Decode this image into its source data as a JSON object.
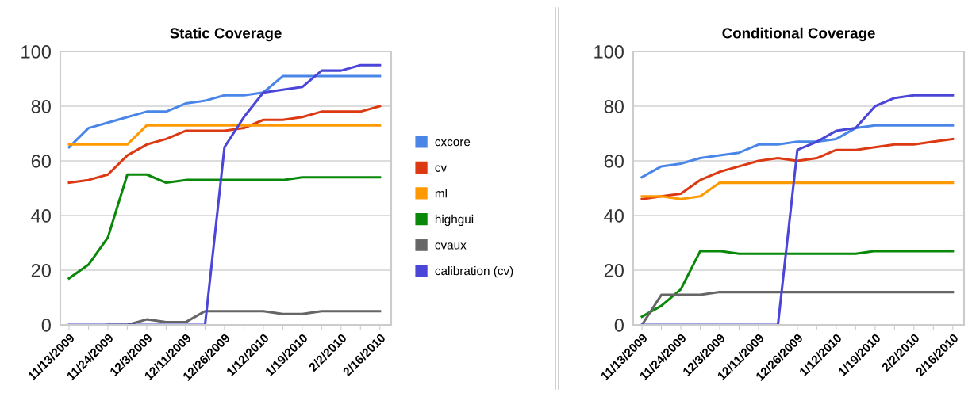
{
  "chart_data": [
    {
      "type": "line",
      "title": "Static Coverage",
      "categories": [
        "11/13/2009",
        null,
        "11/24/2009",
        null,
        "12/3/2009",
        null,
        "12/11/2009",
        null,
        "12/26/2009",
        null,
        "1/12/2010",
        null,
        "1/19/2010",
        null,
        "2/2/2010",
        null,
        "2/16/2010"
      ],
      "ylim": [
        0,
        100
      ],
      "yticks": [
        0,
        20,
        40,
        60,
        80,
        100
      ],
      "grid": "y",
      "legend": "right",
      "series": [
        {
          "name": "cxcore",
          "color": "#4a86e8",
          "values": [
            65,
            72,
            74,
            76,
            78,
            78,
            81,
            82,
            84,
            84,
            85,
            91,
            91,
            91,
            91,
            91,
            91
          ]
        },
        {
          "name": "cv",
          "color": "#dc3912",
          "values": [
            52,
            53,
            55,
            62,
            66,
            68,
            71,
            71,
            71,
            72,
            75,
            75,
            76,
            78,
            78,
            78,
            80
          ]
        },
        {
          "name": "ml",
          "color": "#ff9900",
          "values": [
            66,
            66,
            66,
            66,
            73,
            73,
            73,
            73,
            73,
            73,
            73,
            73,
            73,
            73,
            73,
            73,
            73
          ]
        },
        {
          "name": "highgui",
          "color": "#0a880a",
          "values": [
            17,
            22,
            32,
            55,
            55,
            52,
            53,
            53,
            53,
            53,
            53,
            53,
            54,
            54,
            54,
            54,
            54
          ]
        },
        {
          "name": "cvaux",
          "color": "#666666",
          "values": [
            null,
            null,
            0,
            0,
            2,
            1,
            1,
            5,
            5,
            5,
            5,
            4,
            4,
            5,
            5,
            5,
            5
          ]
        },
        {
          "name": "calibration (cv)",
          "color": "#4b45d8",
          "values": [
            0,
            0,
            0,
            0,
            0,
            0,
            0,
            0,
            65,
            76,
            85,
            86,
            87,
            93,
            93,
            95,
            95
          ]
        }
      ]
    },
    {
      "type": "line",
      "title": "Conditional Coverage",
      "categories": [
        "11/13/2009",
        null,
        "11/24/2009",
        null,
        "12/3/2009",
        null,
        "12/11/2009",
        null,
        "12/26/2009",
        null,
        "1/12/2010",
        null,
        "1/19/2010",
        null,
        "2/2/2010",
        null,
        "2/16/2010"
      ],
      "ylim": [
        0,
        100
      ],
      "yticks": [
        0,
        20,
        40,
        60,
        80,
        100
      ],
      "grid": "y",
      "series": [
        {
          "color": "#4a86e8",
          "values": [
            54,
            58,
            59,
            61,
            62,
            63,
            66,
            66,
            67,
            67,
            68,
            72,
            73,
            73,
            73,
            73,
            73
          ]
        },
        {
          "color": "#dc3912",
          "values": [
            46,
            47,
            48,
            53,
            56,
            58,
            60,
            61,
            60,
            61,
            64,
            64,
            65,
            66,
            66,
            67,
            68
          ]
        },
        {
          "color": "#ff9900",
          "values": [
            47,
            47,
            46,
            47,
            52,
            52,
            52,
            52,
            52,
            52,
            52,
            52,
            52,
            52,
            52,
            52,
            52
          ]
        },
        {
          "color": "#0a880a",
          "values": [
            3,
            7,
            13,
            27,
            27,
            26,
            26,
            26,
            26,
            26,
            26,
            26,
            27,
            27,
            27,
            27,
            27
          ]
        },
        {
          "color": "#666666",
          "values": [
            0,
            11,
            11,
            11,
            12,
            12,
            12,
            12,
            12,
            12,
            12,
            12,
            12,
            12,
            12,
            12,
            12
          ]
        },
        {
          "color": "#4b45d8",
          "values": [
            0,
            0,
            0,
            0,
            0,
            0,
            0,
            0,
            64,
            67,
            71,
            72,
            80,
            83,
            84,
            84,
            84
          ]
        }
      ]
    }
  ]
}
